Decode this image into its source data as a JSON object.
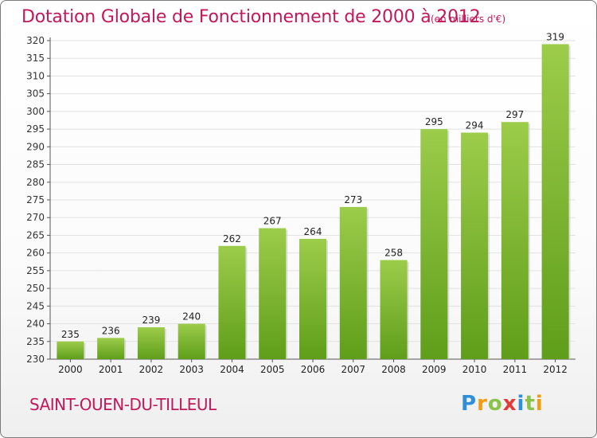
{
  "header": {
    "title": "Dotation Globale de Fonctionnement de 2000 à 2012",
    "subtitle": "(en milliers d'€)"
  },
  "footer": {
    "place": "SAINT-OUEN-DU-TILLEUL",
    "logo_letters": [
      "P",
      "r",
      "o",
      "x",
      "i",
      "t",
      "i"
    ],
    "logo_colors": [
      "#2f8fd8",
      "#f39c12",
      "#8bc34a",
      "#e53935",
      "#2f8fd8",
      "#8bc34a",
      "#f39c12"
    ]
  },
  "colors": {
    "bar_top": "#9ccc4a",
    "bar_bottom": "#5f9e1a",
    "title": "#c2185b",
    "grid": "#e2e2e2"
  },
  "chart_data": {
    "type": "bar",
    "categories": [
      "2000",
      "2001",
      "2002",
      "2003",
      "2004",
      "2005",
      "2006",
      "2007",
      "2008",
      "2009",
      "2010",
      "2011",
      "2012"
    ],
    "values": [
      235,
      236,
      239,
      240,
      262,
      267,
      264,
      273,
      258,
      295,
      294,
      297,
      319
    ],
    "ylim": [
      230,
      320
    ],
    "ytick_step": 5,
    "grid": true
  }
}
